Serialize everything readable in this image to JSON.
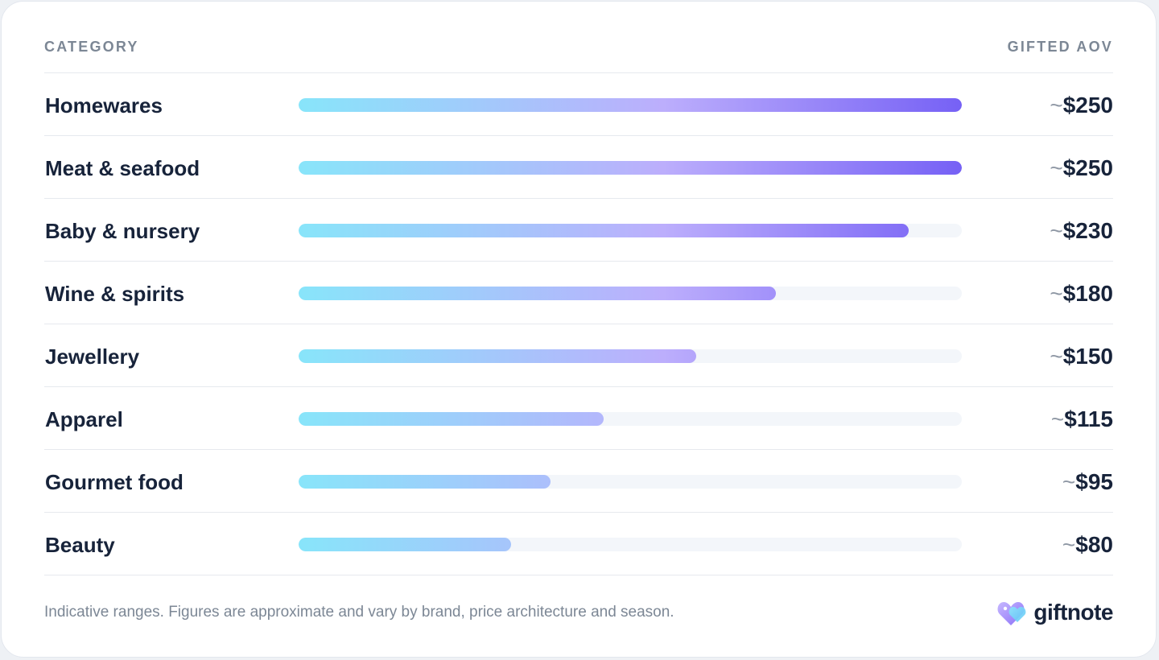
{
  "header": {
    "category_label": "CATEGORY",
    "value_label": "GIFTED AOV"
  },
  "chart_data": {
    "type": "bar",
    "orientation": "horizontal",
    "categories": [
      "Homewares",
      "Meat & seafood",
      "Baby & nursery",
      "Wine & spirits",
      "Jewellery",
      "Apparel",
      "Gourmet food",
      "Beauty"
    ],
    "values": [
      250,
      250,
      230,
      180,
      150,
      115,
      95,
      80
    ],
    "value_labels": [
      "~$250",
      "~$250",
      "~$230",
      "~$180",
      "~$150",
      "~$115",
      "~$95",
      "~$80"
    ],
    "xlim": [
      0,
      250
    ],
    "colors": {
      "gradient_start": "#88e5fa",
      "gradient_mid": "#bcaefc",
      "gradient_end": "#7661f5",
      "track": "#f3f6fa"
    }
  },
  "footer": {
    "note": "Indicative ranges. Figures are approximate and vary by brand, price architecture and season.",
    "brand_name": "giftnote",
    "brand_icon": "heart-tag-icon"
  }
}
